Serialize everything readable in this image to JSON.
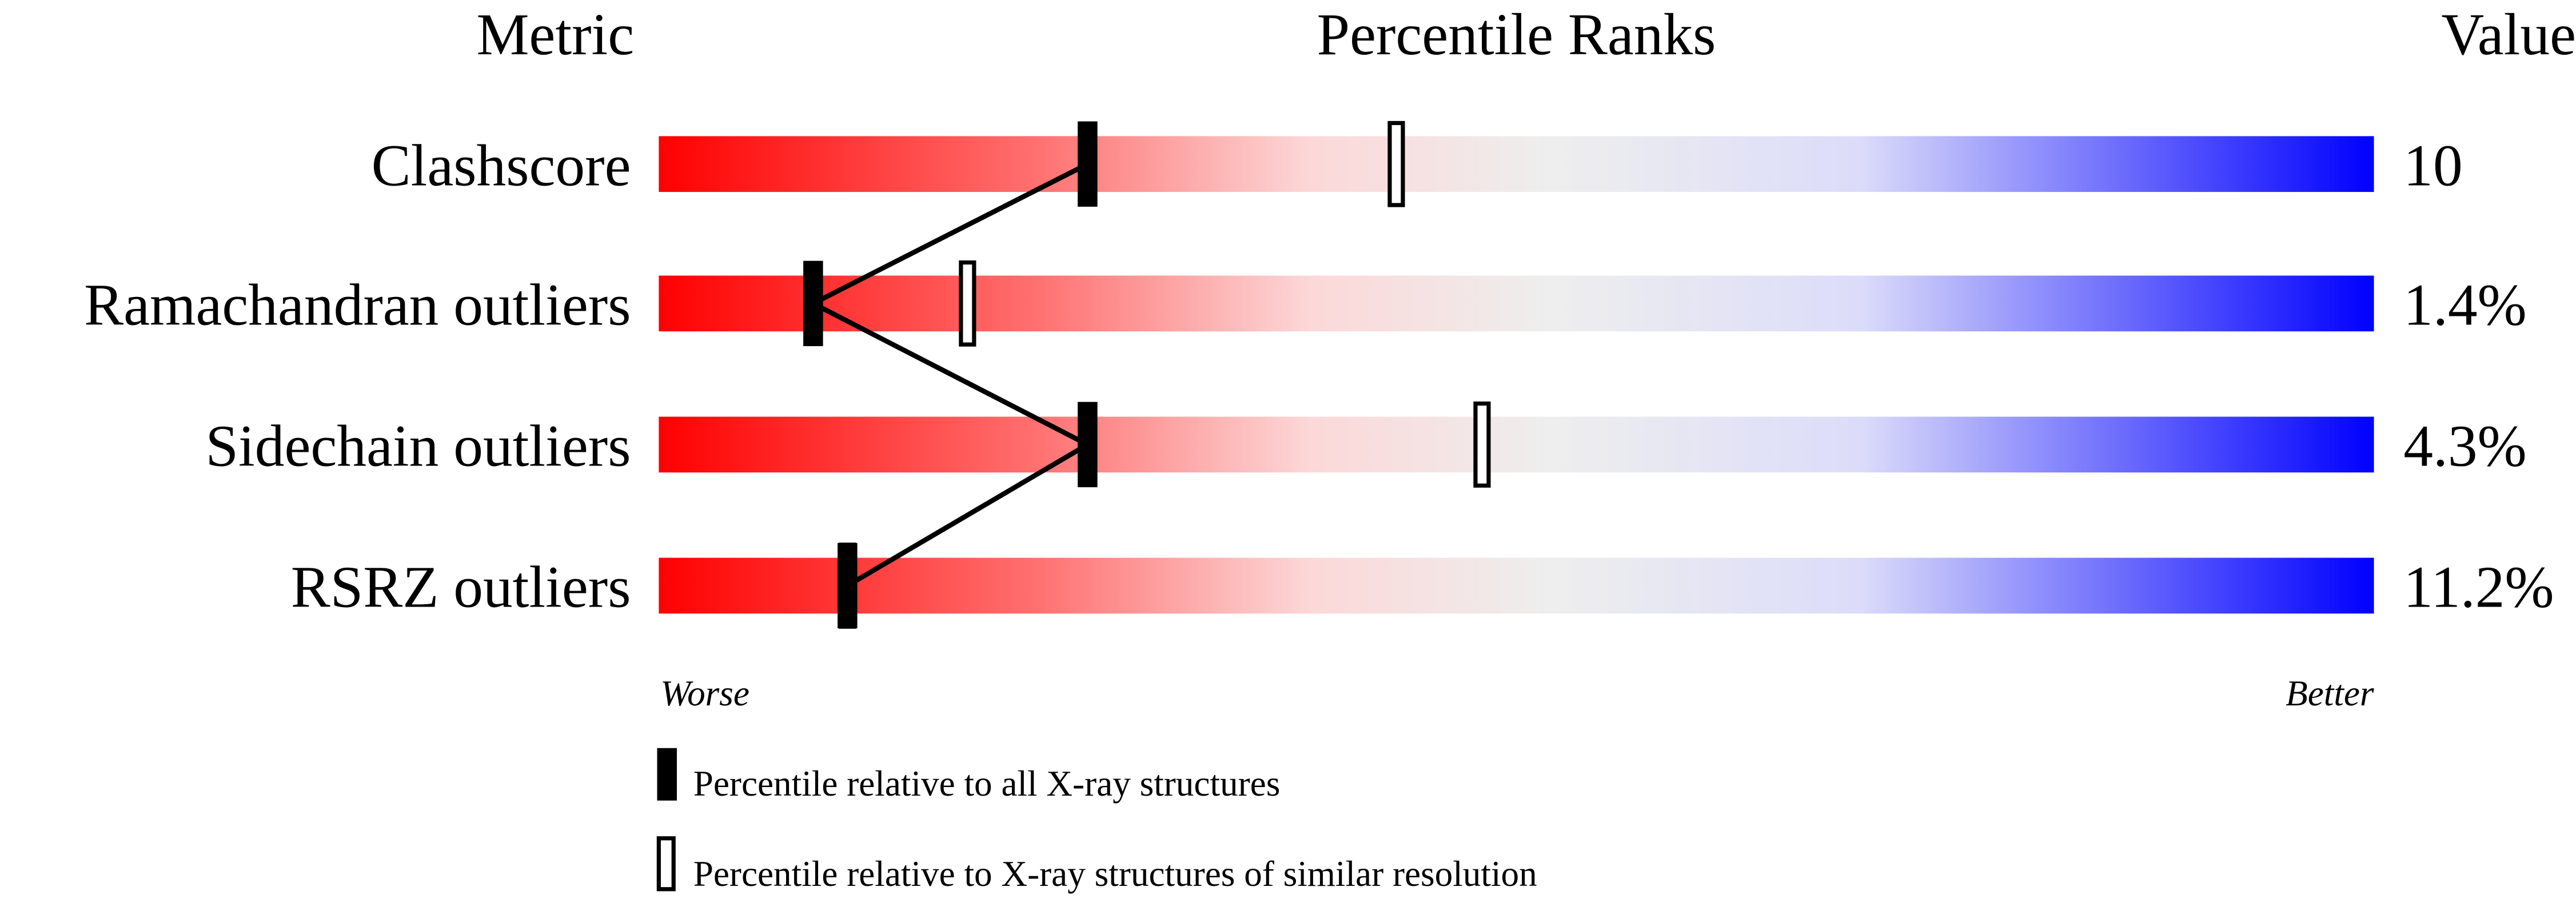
{
  "chart_data": {
    "type": "bar",
    "headers": {
      "metric": "Metric",
      "ranks": "Percentile Ranks",
      "value": "Value"
    },
    "xlim": [
      0,
      100
    ],
    "axis_labels": {
      "worse": "Worse",
      "better": "Better"
    },
    "gradient_colors": [
      "#ff0000",
      "#ff7070",
      "#fcd8d8",
      "#eeeeee",
      "#dcdcfa",
      "#0000ff"
    ],
    "categories": [
      "Clashscore",
      "Ramachandran outliers",
      "Sidechain outliers",
      "RSRZ outliers"
    ],
    "values": [
      "10",
      "1.4%",
      "4.3%",
      "11.2%"
    ],
    "series": [
      {
        "name": "Percentile relative to all X-ray structures",
        "marker": "filled",
        "values": [
          25,
          9,
          25,
          11
        ]
      },
      {
        "name": "Percentile relative to X-ray structures of similar resolution",
        "marker": "open",
        "values": [
          43,
          18,
          48,
          11
        ]
      }
    ],
    "legend_position": "bottom",
    "grid": false
  }
}
